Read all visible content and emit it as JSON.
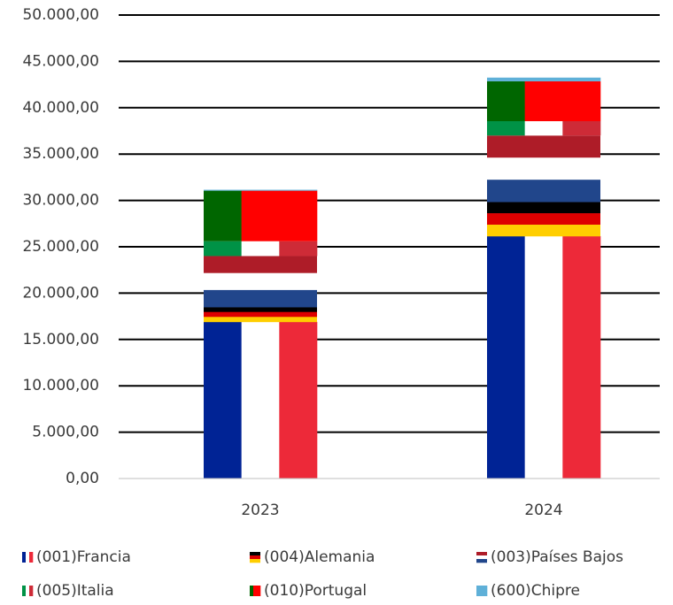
{
  "chart_data": {
    "type": "bar",
    "stacked": true,
    "categories": [
      "2023",
      "2024"
    ],
    "series": [
      {
        "name": "(001)Francia",
        "color": [
          "#002395",
          "#ffffff",
          "#ed2939"
        ],
        "stripes": "vertical",
        "values": [
          16900,
          26150
        ]
      },
      {
        "name": "(004)Alemania",
        "color": [
          "#000000",
          "#dd0000",
          "#ffce00"
        ],
        "stripes": "horizontal",
        "values": [
          1600,
          3700
        ]
      },
      {
        "name": "(003)Países Bajos",
        "color": [
          "#ae1c28",
          "#ffffff",
          "#21468b"
        ],
        "stripes": "horizontal",
        "values": [
          5500,
          7150
        ]
      },
      {
        "name": "(005)Italia",
        "color": [
          "#009246",
          "#ffffff",
          "#ce2b37"
        ],
        "stripes": "vertical",
        "values": [
          1600,
          1550
        ]
      },
      {
        "name": "(010)Portugal",
        "color": [
          "#006600",
          "#ff0000",
          "#ff0000"
        ],
        "stripes": "vertical",
        "values": [
          5450,
          4300
        ]
      },
      {
        "name": "(600)Chipre",
        "color": [
          "#5fb0d8"
        ],
        "stripes": "vertical",
        "values": [
          100,
          400
        ]
      }
    ],
    "ylim": [
      0,
      50000
    ],
    "yticks": [
      {
        "value": 0,
        "label": "0,00"
      },
      {
        "value": 5000,
        "label": "5.000,00"
      },
      {
        "value": 10000,
        "label": "10.000,00"
      },
      {
        "value": 15000,
        "label": "15.000,00"
      },
      {
        "value": 20000,
        "label": "20.000,00"
      },
      {
        "value": 25000,
        "label": "25.000,00"
      },
      {
        "value": 30000,
        "label": "30.000,00"
      },
      {
        "value": 35000,
        "label": "35.000,00"
      },
      {
        "value": 40000,
        "label": "40.000,00"
      },
      {
        "value": 45000,
        "label": "45.000,00"
      },
      {
        "value": 50000,
        "label": "50.000,00"
      }
    ],
    "grid": true,
    "legend": "bottom"
  }
}
